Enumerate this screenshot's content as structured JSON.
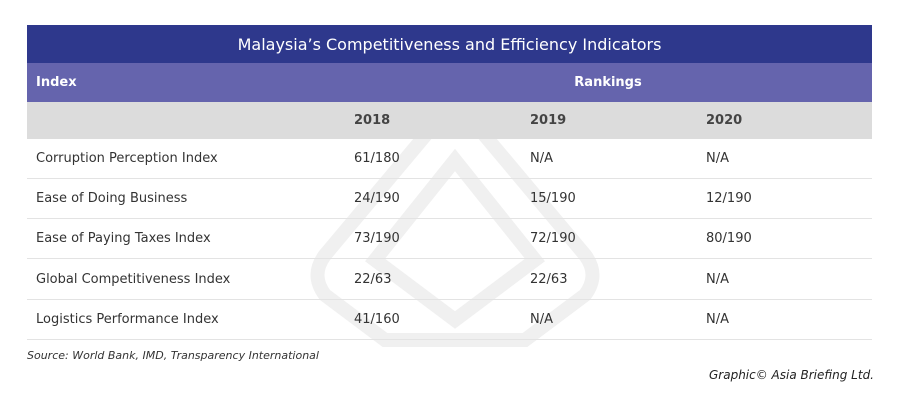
{
  "title": "Malaysia’s Competitiveness and Efficiency Indicators",
  "table": {
    "header": {
      "index": "Index",
      "rankings": "Rankings"
    },
    "years": [
      "2018",
      "2019",
      "2020"
    ],
    "rows": [
      [
        "Corruption Perception Index",
        "61/180",
        "N/A",
        "N/A"
      ],
      [
        "Ease of Doing Business",
        "24/190",
        "15/190",
        "12/190"
      ],
      [
        "Ease of Paying Taxes Index",
        "73/190",
        "72/190",
        "80/190"
      ],
      [
        "Global Competitiveness Index",
        "22/63",
        "22/63",
        "N/A"
      ],
      [
        "Logistics Performance Index",
        "41/160",
        "N/A",
        "N/A"
      ]
    ]
  },
  "source": "Source: World Bank, IMD, Transparency International",
  "credit": "Graphic© Asia Briefing Ltd."
}
